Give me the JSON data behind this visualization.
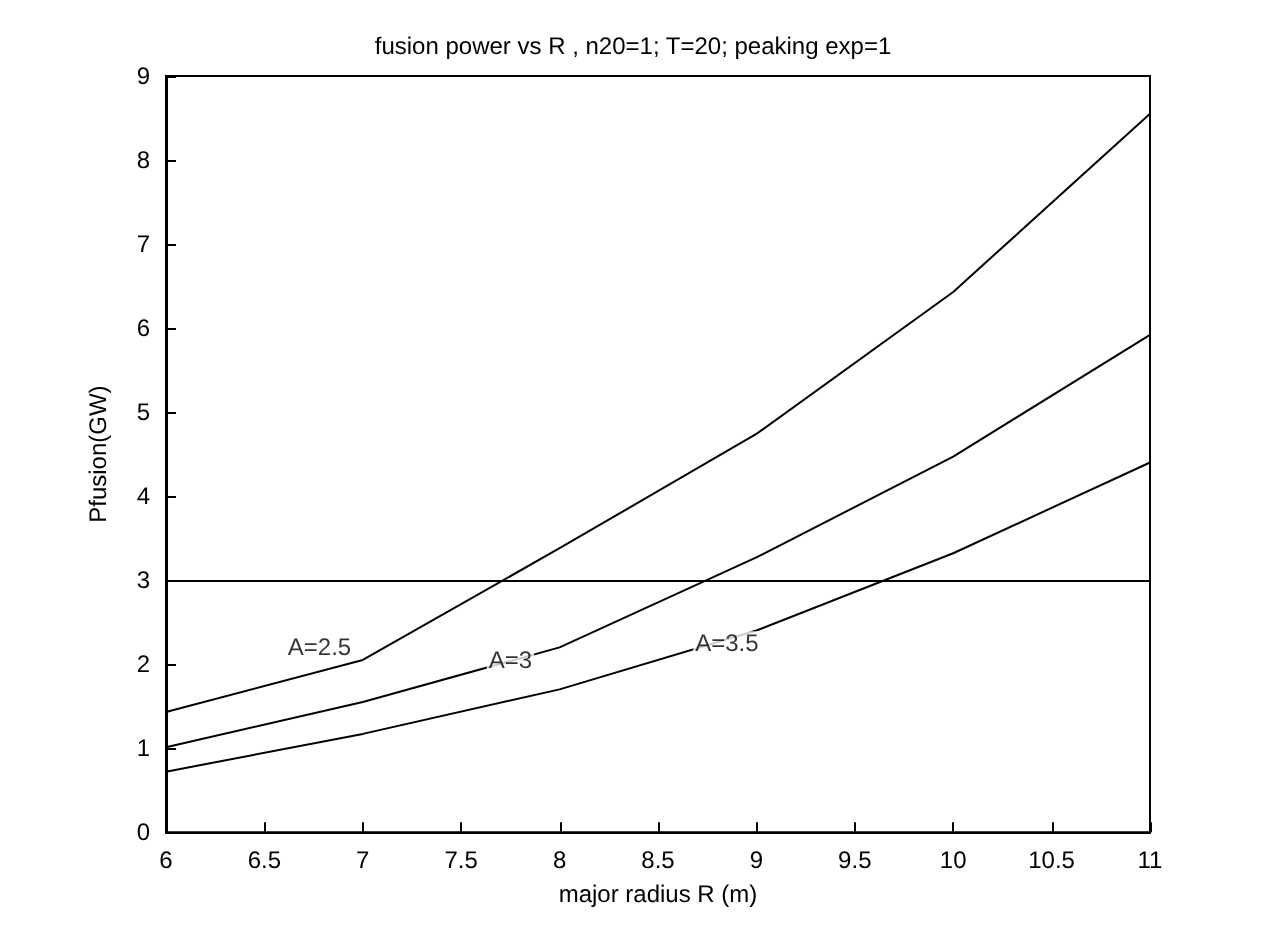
{
  "chart_data": {
    "type": "line",
    "title": "fusion power vs R , n20=1; T=20; peaking exp=1",
    "xlabel": "major radius R (m)",
    "ylabel": "Pfusion(GW)",
    "x": [
      6,
      7,
      8,
      9,
      10,
      11
    ],
    "series": [
      {
        "color": "#000000",
        "values": [
          1.43,
          2.05,
          3.38,
          4.74,
          6.43,
          8.55
        ]
      },
      {
        "color": "#000000",
        "values": [
          1.01,
          1.55,
          2.2,
          3.27,
          4.47,
          5.92
        ]
      },
      {
        "color": "#000000",
        "values": [
          0.72,
          1.17,
          1.7,
          2.4,
          3.32,
          4.4
        ]
      }
    ],
    "xlim": [
      6,
      11
    ],
    "xticks": [
      6,
      6.5,
      7,
      7.5,
      8,
      8.5,
      9,
      9.5,
      10,
      10.5,
      11
    ],
    "ylim": [
      0,
      9
    ],
    "yticks": [
      0,
      1,
      2,
      3,
      4,
      5,
      6,
      7,
      8,
      9
    ],
    "ref_lines": [
      {
        "axis": "y",
        "value": 3,
        "color": "#000000"
      }
    ],
    "annotations": [
      {
        "text": "A=2.5",
        "x": 6.78,
        "y": 2.2
      },
      {
        "text": "A=3",
        "x": 7.75,
        "y": 2.05
      },
      {
        "text": "A=3.5",
        "x": 8.85,
        "y": 2.25
      }
    ],
    "grid": false,
    "marker": "none",
    "line_style": "solid"
  }
}
